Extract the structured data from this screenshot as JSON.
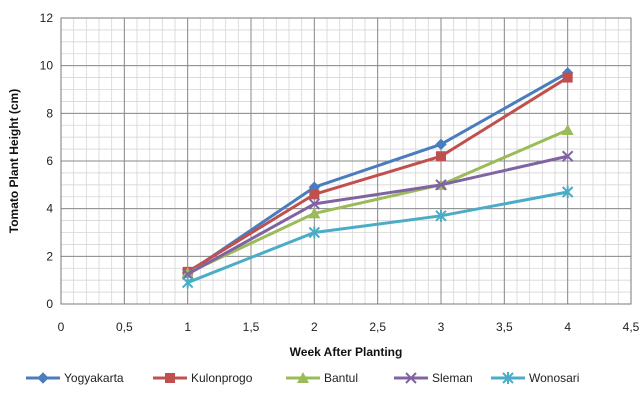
{
  "chart_data": {
    "type": "line",
    "xlabel": "Week After Planting",
    "ylabel": "Tomato Plant Height (cm)",
    "xlim": [
      0,
      4.5
    ],
    "ylim": [
      0,
      12
    ],
    "x_major_ticks": [
      "0",
      "0,5",
      "1",
      "1,5",
      "2",
      "2,5",
      "3",
      "3,5",
      "4",
      "4,5"
    ],
    "y_major_ticks": [
      "0",
      "2",
      "4",
      "6",
      "8",
      "10",
      "12"
    ],
    "grid": true,
    "legend_position": "bottom",
    "x": [
      1,
      2,
      3,
      4
    ],
    "series": [
      {
        "name": "Yogyakarta",
        "values": [
          1.3,
          4.9,
          6.7,
          9.7
        ],
        "color": "#4a7dbd",
        "marker": "diamond"
      },
      {
        "name": "Kulonprogo",
        "values": [
          1.35,
          4.6,
          6.2,
          9.5
        ],
        "color": "#c0504d",
        "marker": "square"
      },
      {
        "name": "Bantul",
        "values": [
          1.3,
          3.8,
          5.0,
          7.3
        ],
        "color": "#9bbb59",
        "marker": "triangle"
      },
      {
        "name": "Sleman",
        "values": [
          1.25,
          4.2,
          5.0,
          6.2
        ],
        "color": "#8064a2",
        "marker": "x"
      },
      {
        "name": "Wonosari",
        "values": [
          0.9,
          3.0,
          3.7,
          4.7
        ],
        "color": "#4bacc6",
        "marker": "star"
      }
    ]
  }
}
